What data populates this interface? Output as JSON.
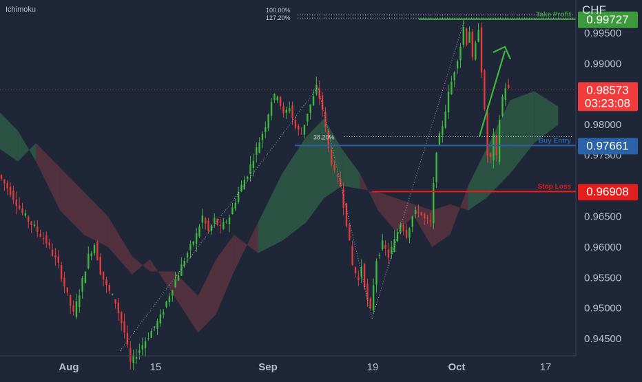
{
  "indicator_label": "Ichimoku",
  "currency": "CHF",
  "colors": {
    "background": "#1e2637",
    "bull": "#3fb83f",
    "bear": "#e33c3c",
    "cloud_bull": "#2f5a45",
    "cloud_bear": "#5b3440",
    "take_profit": "#3c9a3c",
    "buy_entry": "#2a62a8",
    "stop_loss": "#e21e1e",
    "current_price": "#f23c3c",
    "axis_text": "#b8bfcc"
  },
  "chart_data": {
    "type": "candlestick",
    "y_axis": {
      "ticks": [
        "0.99500",
        "0.99000",
        "0.98000",
        "0.97500",
        "0.96500",
        "0.96000",
        "0.95500",
        "0.95000",
        "0.94500"
      ],
      "range": [
        0.9422,
        1.0004
      ]
    },
    "x_axis": {
      "ticks": [
        "Aug",
        "15",
        "Sep",
        "19",
        "Oct",
        "17"
      ]
    },
    "levels": [
      {
        "name": "Take Profit",
        "label": "Take Profit",
        "price": "0.99727",
        "value": 0.99727,
        "style": "take_profit"
      },
      {
        "name": "Buy Entry",
        "label": "Buy Entry",
        "price": "0.97661",
        "value": 0.97661,
        "style": "buy_entry"
      },
      {
        "name": "Stop Loss",
        "label": "Stop Loss",
        "price": "0.96908",
        "value": 0.96908,
        "style": "stop_loss"
      }
    ],
    "current_price": {
      "price": "0.98573",
      "value": 0.98573,
      "countdown": "03:23:08"
    },
    "fibonacci": [
      {
        "label": "100.00%",
        "value": 0.99795
      },
      {
        "label": "127.20%",
        "value": 0.99745
      },
      {
        "label": "38.20%",
        "value": 0.97805
      }
    ],
    "price_path": [
      {
        "t": 0,
        "p": 0.9718
      },
      {
        "t": 4,
        "p": 0.969
      },
      {
        "t": 8,
        "p": 0.9655
      },
      {
        "t": 12,
        "p": 0.9632
      },
      {
        "t": 16,
        "p": 0.9608
      },
      {
        "t": 20,
        "p": 0.957
      },
      {
        "t": 23,
        "p": 0.952
      },
      {
        "t": 25,
        "p": 0.949
      },
      {
        "t": 27,
        "p": 0.9525
      },
      {
        "t": 30,
        "p": 0.9585
      },
      {
        "t": 32,
        "p": 0.9605
      },
      {
        "t": 34,
        "p": 0.956
      },
      {
        "t": 36,
        "p": 0.9535
      },
      {
        "t": 39,
        "p": 0.951
      },
      {
        "t": 42,
        "p": 0.946
      },
      {
        "t": 44,
        "p": 0.941
      },
      {
        "t": 46,
        "p": 0.9425
      },
      {
        "t": 48,
        "p": 0.944
      },
      {
        "t": 50,
        "p": 0.9455
      },
      {
        "t": 54,
        "p": 0.9485
      },
      {
        "t": 58,
        "p": 0.9535
      },
      {
        "t": 62,
        "p": 0.958
      },
      {
        "t": 66,
        "p": 0.962
      },
      {
        "t": 68,
        "p": 0.965
      },
      {
        "t": 70,
        "p": 0.9625
      },
      {
        "t": 72,
        "p": 0.9645
      },
      {
        "t": 74,
        "p": 0.963
      },
      {
        "t": 77,
        "p": 0.965
      },
      {
        "t": 80,
        "p": 0.969
      },
      {
        "t": 83,
        "p": 0.972
      },
      {
        "t": 86,
        "p": 0.976
      },
      {
        "t": 89,
        "p": 0.98
      },
      {
        "t": 91,
        "p": 0.984
      },
      {
        "t": 93,
        "p": 0.985
      },
      {
        "t": 95,
        "p": 0.9815
      },
      {
        "t": 97,
        "p": 0.983
      },
      {
        "t": 99,
        "p": 0.9795
      },
      {
        "t": 101,
        "p": 0.9785
      },
      {
        "t": 103,
        "p": 0.982
      },
      {
        "t": 105,
        "p": 0.9845
      },
      {
        "t": 106,
        "p": 0.9862
      },
      {
        "t": 108,
        "p": 0.9825
      },
      {
        "t": 110,
        "p": 0.976
      },
      {
        "t": 112,
        "p": 0.972
      },
      {
        "t": 114,
        "p": 0.97
      },
      {
        "t": 116,
        "p": 0.964
      },
      {
        "t": 118,
        "p": 0.957
      },
      {
        "t": 120,
        "p": 0.9545
      },
      {
        "t": 121,
        "p": 0.957
      },
      {
        "t": 123,
        "p": 0.951
      },
      {
        "t": 124,
        "p": 0.9495
      },
      {
        "t": 125,
        "p": 0.954
      },
      {
        "t": 126,
        "p": 0.958
      },
      {
        "t": 128,
        "p": 0.9605
      },
      {
        "t": 130,
        "p": 0.9585
      },
      {
        "t": 132,
        "p": 0.961
      },
      {
        "t": 134,
        "p": 0.964
      },
      {
        "t": 136,
        "p": 0.962
      },
      {
        "t": 138,
        "p": 0.965
      },
      {
        "t": 140,
        "p": 0.966
      },
      {
        "t": 142,
        "p": 0.9645
      },
      {
        "t": 144,
        "p": 0.964
      },
      {
        "t": 145,
        "p": 0.97
      },
      {
        "t": 146,
        "p": 0.976
      },
      {
        "t": 148,
        "p": 0.98
      },
      {
        "t": 150,
        "p": 0.985
      },
      {
        "t": 152,
        "p": 0.989
      },
      {
        "t": 154,
        "p": 0.993
      },
      {
        "t": 155,
        "p": 0.996
      },
      {
        "t": 156,
        "p": 0.9935
      },
      {
        "t": 157,
        "p": 0.9955
      },
      {
        "t": 158,
        "p": 0.9905
      },
      {
        "t": 159,
        "p": 0.993
      },
      {
        "t": 160,
        "p": 0.996
      },
      {
        "t": 161,
        "p": 0.989
      },
      {
        "t": 162,
        "p": 0.982
      },
      {
        "t": 163,
        "p": 0.975
      },
      {
        "t": 164,
        "p": 0.9745
      },
      {
        "t": 165,
        "p": 0.978
      },
      {
        "t": 166,
        "p": 0.9745
      },
      {
        "t": 167,
        "p": 0.981
      },
      {
        "t": 168,
        "p": 0.9845
      },
      {
        "t": 169,
        "p": 0.9862
      },
      {
        "t": 170,
        "p": 0.9857
      }
    ],
    "cloud": [
      {
        "t": 0,
        "a": 0.982,
        "b": 0.976
      },
      {
        "t": 6,
        "a": 0.979,
        "b": 0.974
      },
      {
        "t": 12,
        "a": 0.974,
        "b": 0.977
      },
      {
        "t": 20,
        "a": 0.966,
        "b": 0.973
      },
      {
        "t": 28,
        "a": 0.962,
        "b": 0.969
      },
      {
        "t": 36,
        "a": 0.96,
        "b": 0.965
      },
      {
        "t": 44,
        "a": 0.9555,
        "b": 0.9585
      },
      {
        "t": 50,
        "a": 0.958,
        "b": 0.956
      },
      {
        "t": 58,
        "a": 0.952,
        "b": 0.956
      },
      {
        "t": 66,
        "a": 0.946,
        "b": 0.952
      },
      {
        "t": 72,
        "a": 0.949,
        "b": 0.958
      },
      {
        "t": 78,
        "a": 0.956,
        "b": 0.962
      },
      {
        "t": 86,
        "a": 0.964,
        "b": 0.959
      },
      {
        "t": 94,
        "a": 0.972,
        "b": 0.961
      },
      {
        "t": 102,
        "a": 0.978,
        "b": 0.964
      },
      {
        "t": 108,
        "a": 0.981,
        "b": 0.968
      },
      {
        "t": 114,
        "a": 0.976,
        "b": 0.97
      },
      {
        "t": 120,
        "a": 0.972,
        "b": 0.9695
      },
      {
        "t": 126,
        "a": 0.966,
        "b": 0.969
      },
      {
        "t": 132,
        "a": 0.9625,
        "b": 0.968
      },
      {
        "t": 138,
        "a": 0.965,
        "b": 0.967
      },
      {
        "t": 144,
        "a": 0.96,
        "b": 0.966
      },
      {
        "t": 150,
        "a": 0.962,
        "b": 0.967
      },
      {
        "t": 156,
        "a": 0.97,
        "b": 0.966
      },
      {
        "t": 162,
        "a": 0.976,
        "b": 0.968
      },
      {
        "t": 170,
        "a": 0.984,
        "b": 0.972
      },
      {
        "t": 178,
        "a": 0.9855,
        "b": 0.977
      },
      {
        "t": 186,
        "a": 0.983,
        "b": 0.98
      }
    ]
  }
}
